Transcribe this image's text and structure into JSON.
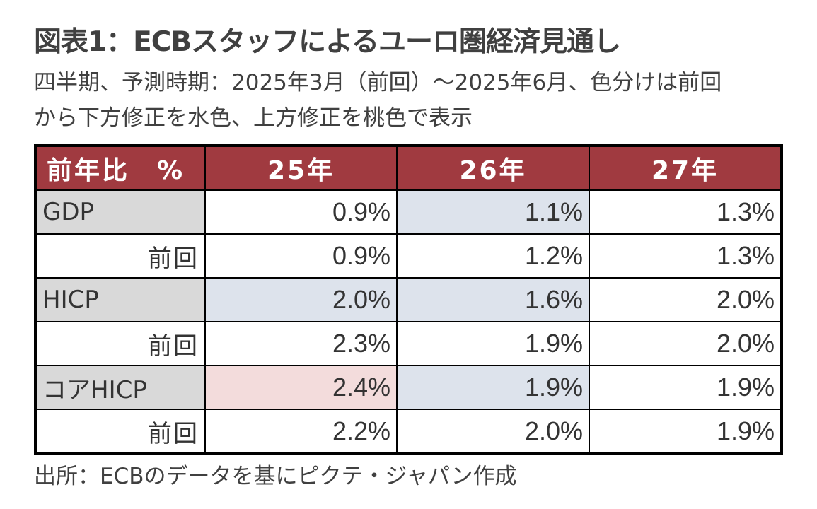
{
  "title": "図表1：ECBスタッフによるユーロ圏経済見通し",
  "subtitle_line1": "四半期、予測時期：2025年3月（前回）～2025年6月、色分けは前回",
  "subtitle_line2": "から下方修正を水色、上方修正を桃色で表示",
  "source": "出所：ECBのデータを基にピクテ・ジャパン作成",
  "colors": {
    "header_bg": "#a03a40",
    "header_text": "#ffffff",
    "label_bg": "#d9d9d9",
    "downward_revision": "#dde3ec",
    "upward_revision": "#f3dcdc",
    "no_change": "#ffffff"
  },
  "chart_data": {
    "type": "table",
    "columns": [
      "前年比　%",
      "25年",
      "26年",
      "27年"
    ],
    "rows": [
      {
        "label": "GDP",
        "kind": "main",
        "values": [
          "0.9%",
          "1.1%",
          "1.3%"
        ],
        "revision": [
          "none",
          "down",
          "none"
        ]
      },
      {
        "label": "前回",
        "kind": "prev",
        "values": [
          "0.9%",
          "1.2%",
          "1.3%"
        ],
        "revision": [
          "none",
          "none",
          "none"
        ]
      },
      {
        "label": "HICP",
        "kind": "main",
        "values": [
          "2.0%",
          "1.6%",
          "2.0%"
        ],
        "revision": [
          "down",
          "down",
          "none"
        ]
      },
      {
        "label": "前回",
        "kind": "prev",
        "values": [
          "2.3%",
          "1.9%",
          "2.0%"
        ],
        "revision": [
          "none",
          "none",
          "none"
        ]
      },
      {
        "label": "コアHICP",
        "kind": "main",
        "values": [
          "2.4%",
          "1.9%",
          "1.9%"
        ],
        "revision": [
          "up",
          "down",
          "none"
        ]
      },
      {
        "label": "前回",
        "kind": "prev",
        "values": [
          "2.2%",
          "2.0%",
          "1.9%"
        ],
        "revision": [
          "none",
          "none",
          "none"
        ]
      }
    ]
  }
}
